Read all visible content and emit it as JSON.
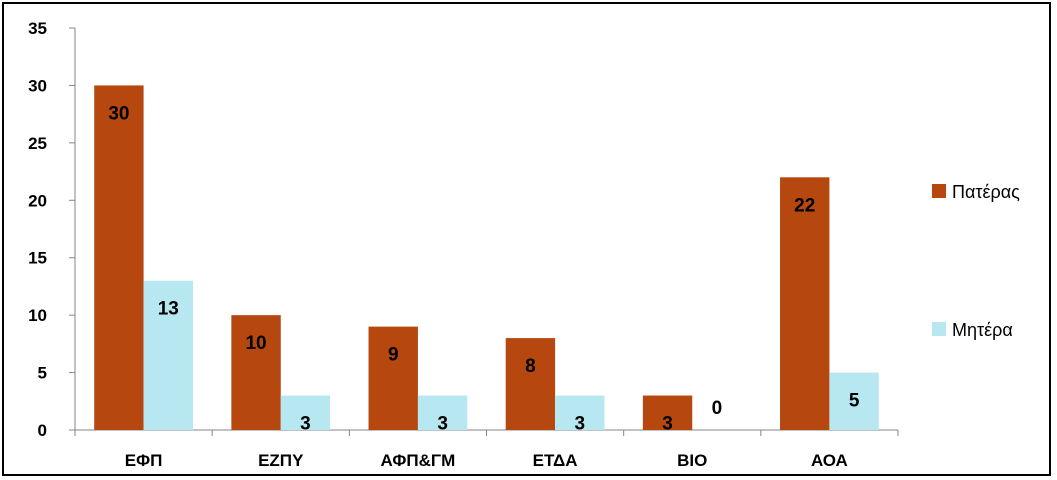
{
  "chart_data": {
    "type": "bar",
    "title": "",
    "xlabel": "",
    "ylabel": "",
    "categories": [
      "ΕΦΠ",
      "ΕΖΠΥ",
      "ΑΦΠ&ΓΜ",
      "ΕΤΔΑ",
      "ΒΙΟ",
      "ΑΟΑ"
    ],
    "series": [
      {
        "name": "Πατέρας",
        "values": [
          30,
          10,
          9,
          8,
          3,
          22
        ],
        "color": "#B5470F"
      },
      {
        "name": "Μητέρα",
        "values": [
          13,
          3,
          3,
          3,
          0,
          5
        ],
        "color": "#B7E8F2"
      }
    ],
    "ylim": [
      0,
      35
    ],
    "yticks": [
      0,
      5,
      10,
      15,
      20,
      25,
      30,
      35
    ],
    "data_labels": true,
    "grid": false,
    "legend_position": "right"
  }
}
